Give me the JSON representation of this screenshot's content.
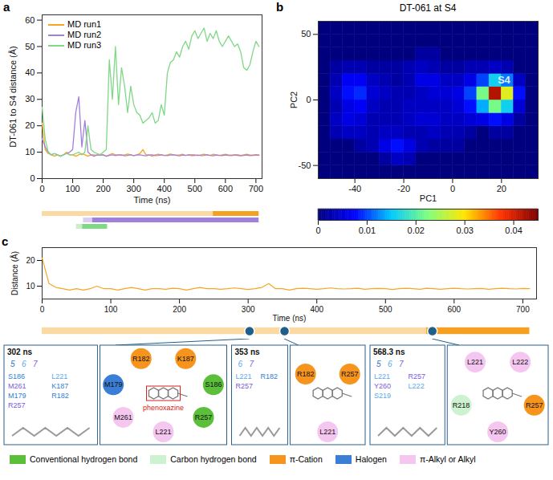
{
  "chart_data": [
    {
      "panel": "a",
      "type": "line",
      "xlabel": "Time (ns)",
      "ylabel": "DT-061 to S4 distance (Å)",
      "xlim": [
        0,
        720
      ],
      "xticks": [
        0,
        100,
        200,
        300,
        400,
        500,
        600,
        700
      ],
      "ylim": [
        0,
        62
      ],
      "yticks": [
        0,
        10,
        20,
        30,
        40,
        50,
        60
      ],
      "legend": "top-left",
      "x": [
        0,
        10,
        20,
        30,
        40,
        50,
        60,
        70,
        80,
        90,
        100,
        110,
        120,
        130,
        140,
        150,
        160,
        170,
        180,
        190,
        200,
        210,
        220,
        230,
        240,
        250,
        260,
        270,
        280,
        290,
        300,
        310,
        320,
        330,
        340,
        350,
        360,
        370,
        380,
        390,
        400,
        410,
        420,
        430,
        440,
        450,
        460,
        470,
        480,
        490,
        500,
        510,
        520,
        530,
        540,
        550,
        560,
        570,
        580,
        590,
        600,
        610,
        620,
        630,
        640,
        650,
        660,
        670,
        680,
        690,
        700,
        710
      ],
      "series": [
        {
          "name": "MD run1",
          "color": "#f5a623",
          "values": [
            21,
            11,
            9.5,
            9,
            8.5,
            9,
            8.5,
            9,
            10,
            9,
            9,
            8.5,
            9,
            9.5,
            9,
            8.5,
            9,
            9,
            8.8,
            9.2,
            9,
            8.5,
            9,
            9.5,
            9,
            9,
            8.8,
            9,
            9.3,
            9,
            8.7,
            9,
            9.5,
            11,
            9,
            9,
            8.5,
            9,
            9.2,
            9,
            8.8,
            9,
            9.3,
            9,
            8.9,
            9,
            9.2,
            8.8,
            9,
            9.1,
            9,
            8.7,
            9,
            9.2,
            9,
            8.8,
            9.2,
            9,
            8.8,
            9,
            9.2,
            9,
            8.9,
            9,
            9.1,
            8.8,
            9,
            9.2,
            9,
            8.9,
            9.1,
            9
          ]
        },
        {
          "name": "MD run2",
          "color": "#a07fe0",
          "values": [
            15,
            12,
            10,
            9,
            9.5,
            9,
            8.5,
            9,
            9.5,
            10,
            11,
            25,
            31,
            12,
            22,
            10,
            9,
            8.5,
            9,
            8.8,
            9,
            8.5,
            8.8,
            9,
            8.7,
            8.9,
            9,
            8.6,
            8.8,
            9,
            8.7,
            8.9,
            9,
            8.8,
            8.6,
            8.9,
            9,
            8.7,
            8.8,
            9,
            8.8,
            8.7,
            8.9,
            9,
            8.8,
            8.6,
            8.9,
            8.8,
            9,
            8.7,
            8.8,
            8.9,
            8.7,
            8.8,
            9,
            8.8,
            8.6,
            8.9,
            8.8,
            8.7,
            8.9,
            8.8,
            8.7,
            8.9,
            8.8,
            8.6,
            8.8,
            8.9,
            8.7,
            8.8,
            8.9,
            8.8
          ]
        },
        {
          "name": "MD run3",
          "color": "#7fd885",
          "values": [
            27,
            15,
            10,
            9,
            9.5,
            9,
            8.5,
            9,
            9.5,
            9,
            9,
            9.5,
            10,
            9,
            10,
            20,
            11,
            10,
            9.5,
            9,
            10,
            11,
            45,
            30,
            50,
            28,
            42,
            35,
            25,
            35,
            28,
            25,
            24,
            21,
            22,
            23,
            25,
            21,
            22,
            28,
            24,
            40,
            44,
            45,
            48,
            46,
            50,
            52,
            49,
            54,
            56,
            53,
            55,
            57,
            52,
            55,
            53,
            56,
            52,
            50,
            52,
            54,
            52,
            50,
            51,
            48,
            42,
            41,
            43,
            48,
            52,
            50
          ]
        }
      ],
      "bars": [
        {
          "series": "MD run1",
          "start": 0,
          "end": 560,
          "color": "#fbd9a3"
        },
        {
          "series": "MD run1",
          "start": 560,
          "end": 710,
          "color": "#f5a020"
        },
        {
          "series": "MD run2",
          "start": 135,
          "end": 165,
          "color": "#dccdf3"
        },
        {
          "series": "MD run2",
          "start": 165,
          "end": 710,
          "color": "#a07fe0"
        },
        {
          "series": "MD run3",
          "start": 112,
          "end": 132,
          "color": "#c9efc4"
        },
        {
          "series": "MD run3",
          "start": 132,
          "end": 214,
          "color": "#7fd885"
        }
      ]
    },
    {
      "panel": "b",
      "type": "heatmap",
      "title": "DT-061 at S4",
      "xlabel": "PC1",
      "ylabel": "PC2",
      "xlim": [
        -55,
        35
      ],
      "xticks": [
        -40,
        -20,
        0,
        20
      ],
      "ylim": [
        -60,
        60
      ],
      "yticks": [
        -50,
        0,
        50
      ],
      "x_bins": [
        -55,
        -50,
        -45,
        -40,
        -35,
        -30,
        -25,
        -20,
        -15,
        -10,
        -5,
        0,
        5,
        10,
        15,
        20,
        25,
        30,
        35
      ],
      "y_bins": [
        -60,
        -50,
        -40,
        -30,
        -20,
        -10,
        0,
        10,
        20,
        30,
        40,
        50,
        60
      ],
      "cells": [
        [
          0,
          0,
          0,
          0,
          0,
          0,
          0,
          0,
          0,
          0,
          0,
          0,
          0,
          0,
          0,
          0,
          0,
          0
        ],
        [
          0,
          0,
          0,
          0,
          0,
          0.002,
          0.004,
          0.003,
          0,
          0,
          0,
          0,
          0,
          0,
          0,
          0,
          0,
          0
        ],
        [
          0,
          0,
          0,
          0.002,
          0.003,
          0.006,
          0.008,
          0.006,
          0.003,
          0.002,
          0.002,
          0.002,
          0,
          0,
          0,
          0,
          0,
          0
        ],
        [
          0,
          0.003,
          0.004,
          0.004,
          0.003,
          0.004,
          0.004,
          0.003,
          0.003,
          0.004,
          0.003,
          0.003,
          0.002,
          0,
          0.002,
          0.002,
          0,
          0
        ],
        [
          0,
          0.004,
          0.006,
          0.005,
          0.003,
          0.003,
          0.003,
          0.004,
          0.005,
          0.005,
          0.004,
          0.004,
          0.005,
          0.006,
          0.008,
          0.006,
          0.002,
          0
        ],
        [
          0,
          0.003,
          0.006,
          0.007,
          0.004,
          0.003,
          0.003,
          0.004,
          0.004,
          0.004,
          0.004,
          0.005,
          0.008,
          0.014,
          0.022,
          0.016,
          0.005,
          0
        ],
        [
          0,
          0.004,
          0.008,
          0.009,
          0.005,
          0.004,
          0.003,
          0.003,
          0.004,
          0.005,
          0.005,
          0.006,
          0.01,
          0.022,
          0.042,
          0.028,
          0.008,
          0
        ],
        [
          0,
          0.003,
          0.007,
          0.007,
          0.004,
          0.003,
          0.002,
          0.003,
          0.006,
          0.006,
          0.004,
          0.004,
          0.006,
          0.01,
          0.016,
          0.012,
          0.004,
          0
        ],
        [
          0,
          0.002,
          0.003,
          0.003,
          0.002,
          0.002,
          0.002,
          0.003,
          0.004,
          0.003,
          0.002,
          0.002,
          0.003,
          0.003,
          0.004,
          0.003,
          0,
          0
        ],
        [
          0,
          0,
          0,
          0,
          0,
          0,
          0,
          0,
          0.002,
          0.002,
          0,
          0,
          0,
          0,
          0,
          0,
          0,
          0
        ],
        [
          0,
          0,
          0,
          0,
          0,
          0,
          0,
          0,
          0,
          0,
          0,
          0,
          0,
          0,
          0,
          0,
          0,
          0
        ],
        [
          0,
          0,
          0,
          0,
          0,
          0,
          0,
          0,
          0,
          0,
          0,
          0,
          0,
          0,
          0,
          0,
          0,
          0
        ]
      ],
      "colorbar": {
        "lim": [
          0,
          0.045
        ],
        "ticks": [
          0,
          0.01,
          0.02,
          0.03,
          0.04
        ],
        "colors": [
          "#00007f",
          "#0000ff",
          "#00c8ff",
          "#7fff7f",
          "#ffe600",
          "#ff3300",
          "#7f0000"
        ]
      },
      "annotations": [
        {
          "text": "S4",
          "x": 21,
          "y": 15
        }
      ]
    },
    {
      "panel": "c",
      "type": "line",
      "xlabel": "Time (ns)",
      "ylabel": "Distance (Å)",
      "xlim": [
        0,
        720
      ],
      "xticks": [
        0,
        100,
        200,
        300,
        400,
        500,
        600,
        700
      ],
      "ylim": [
        5,
        25
      ],
      "yticks": [
        10,
        20
      ],
      "x": [
        0,
        10,
        20,
        30,
        40,
        50,
        60,
        70,
        80,
        90,
        100,
        110,
        120,
        130,
        140,
        150,
        160,
        170,
        180,
        190,
        200,
        210,
        220,
        230,
        240,
        250,
        260,
        270,
        280,
        290,
        300,
        310,
        320,
        330,
        340,
        350,
        360,
        370,
        380,
        390,
        400,
        410,
        420,
        430,
        440,
        450,
        460,
        470,
        480,
        490,
        500,
        510,
        520,
        530,
        540,
        550,
        560,
        570,
        580,
        590,
        600,
        610,
        620,
        630,
        640,
        650,
        660,
        670,
        680,
        690,
        700,
        710
      ],
      "series": [
        {
          "color": "#f5a623",
          "values": [
            21,
            11,
            9.5,
            9,
            8.5,
            9,
            8.5,
            9,
            10,
            9,
            9,
            8.5,
            9,
            9.5,
            9,
            8.5,
            9,
            9,
            8.8,
            9.2,
            9,
            8.5,
            9,
            9.5,
            9,
            9,
            8.8,
            9,
            9.3,
            9,
            8.7,
            9,
            9.5,
            11,
            9,
            9,
            8.5,
            9,
            9.2,
            9,
            8.8,
            9,
            9.3,
            9,
            8.9,
            9,
            9.2,
            8.8,
            9,
            9.1,
            9,
            8.7,
            9,
            9.2,
            9,
            8.8,
            9.2,
            9,
            8.8,
            9,
            9.2,
            9,
            8.9,
            9,
            9.1,
            8.8,
            9,
            9.2,
            9,
            8.9,
            9.1,
            9
          ]
        }
      ],
      "bars": [
        {
          "start": 0,
          "end": 560,
          "color": "#fbd9a3"
        },
        {
          "start": 560,
          "end": 710,
          "color": "#f5a020"
        }
      ],
      "snapshots": [
        {
          "time": 302,
          "label": "302 ns",
          "helices": [
            {
              "text": "5",
              "color": "#2f6fc0"
            },
            {
              "text": "6",
              "color": "#5aa8e8"
            },
            {
              "text": "7",
              "color": "#7b5cd6"
            }
          ],
          "residues": [
            {
              "text": "S186",
              "color": "#2f7fd0"
            },
            {
              "text": "L221",
              "color": "#5aa8e8"
            },
            {
              "text": "M261",
              "color": "#7b5cd6"
            },
            {
              "text": "K187",
              "color": "#2f7fd0"
            },
            {
              "text": "M179",
              "color": "#2f7fd0"
            },
            {
              "text": "R182",
              "color": "#2f7fd0"
            },
            {
              "text": "R257",
              "color": "#7b5cd6"
            }
          ],
          "interactions": [
            {
              "residue": "K187",
              "interaction": "π-Cation"
            },
            {
              "residue": "S186",
              "interaction": "Conventional hydrogen bond"
            },
            {
              "residue": "R257",
              "interaction": "Conventional hydrogen bond"
            },
            {
              "residue": "L221",
              "interaction": "π-Alkyl or Alkyl"
            },
            {
              "residue": "M261",
              "interaction": "π-Alkyl or Alkyl"
            },
            {
              "residue": "M179",
              "interaction": "Halogen"
            },
            {
              "residue": "R182",
              "interaction": "π-Cation"
            }
          ],
          "annotation": "phenoxazine"
        },
        {
          "time": 353,
          "label": "353 ns",
          "helices": [
            {
              "text": "6",
              "color": "#5aa8e8"
            },
            {
              "text": "7",
              "color": "#7b5cd6"
            }
          ],
          "residues": [
            {
              "text": "L221",
              "color": "#5aa8e8"
            },
            {
              "text": "R182",
              "color": "#2f7fd0"
            },
            {
              "text": "R257",
              "color": "#7b5cd6"
            }
          ],
          "interactions": [
            {
              "residue": "R257",
              "interaction": "π-Cation"
            },
            {
              "residue": "L221",
              "interaction": "π-Alkyl or Alkyl"
            },
            {
              "residue": "R182",
              "interaction": "π-Cation"
            }
          ]
        },
        {
          "time": 568.3,
          "label": "568.3 ns",
          "helices": [
            {
              "text": "5",
              "color": "#2f6fc0"
            },
            {
              "text": "6",
              "color": "#5aa8e8"
            },
            {
              "text": "7",
              "color": "#7b5cd6"
            }
          ],
          "residues": [
            {
              "text": "L221",
              "color": "#5aa8e8"
            },
            {
              "text": "R257",
              "color": "#7b5cd6"
            },
            {
              "text": "Y260",
              "color": "#7b5cd6"
            },
            {
              "text": "L222",
              "color": "#5aa8e8"
            },
            {
              "text": "S219",
              "color": "#5aa8e8"
            }
          ],
          "interactions": [
            {
              "residue": "L222",
              "interaction": "π-Alkyl or Alkyl"
            },
            {
              "residue": "R257",
              "interaction": "π-Cation"
            },
            {
              "residue": "Y260",
              "interaction": "π-Alkyl or Alkyl"
            },
            {
              "residue": "R218",
              "interaction": "Carbon hydrogen bond"
            },
            {
              "residue": "L221",
              "interaction": "π-Alkyl or Alkyl"
            }
          ]
        }
      ],
      "interaction_legend": [
        {
          "name": "Conventional hydrogen bond",
          "color": "#5bbf3a"
        },
        {
          "name": "Carbon hydrogen bond",
          "color": "#cdf2cf"
        },
        {
          "name": "π-Cation",
          "color": "#f7941d"
        },
        {
          "name": "Halogen",
          "color": "#3a7fd5"
        },
        {
          "name": "π-Alkyl or Alkyl",
          "color": "#f5c6ef"
        }
      ]
    }
  ]
}
